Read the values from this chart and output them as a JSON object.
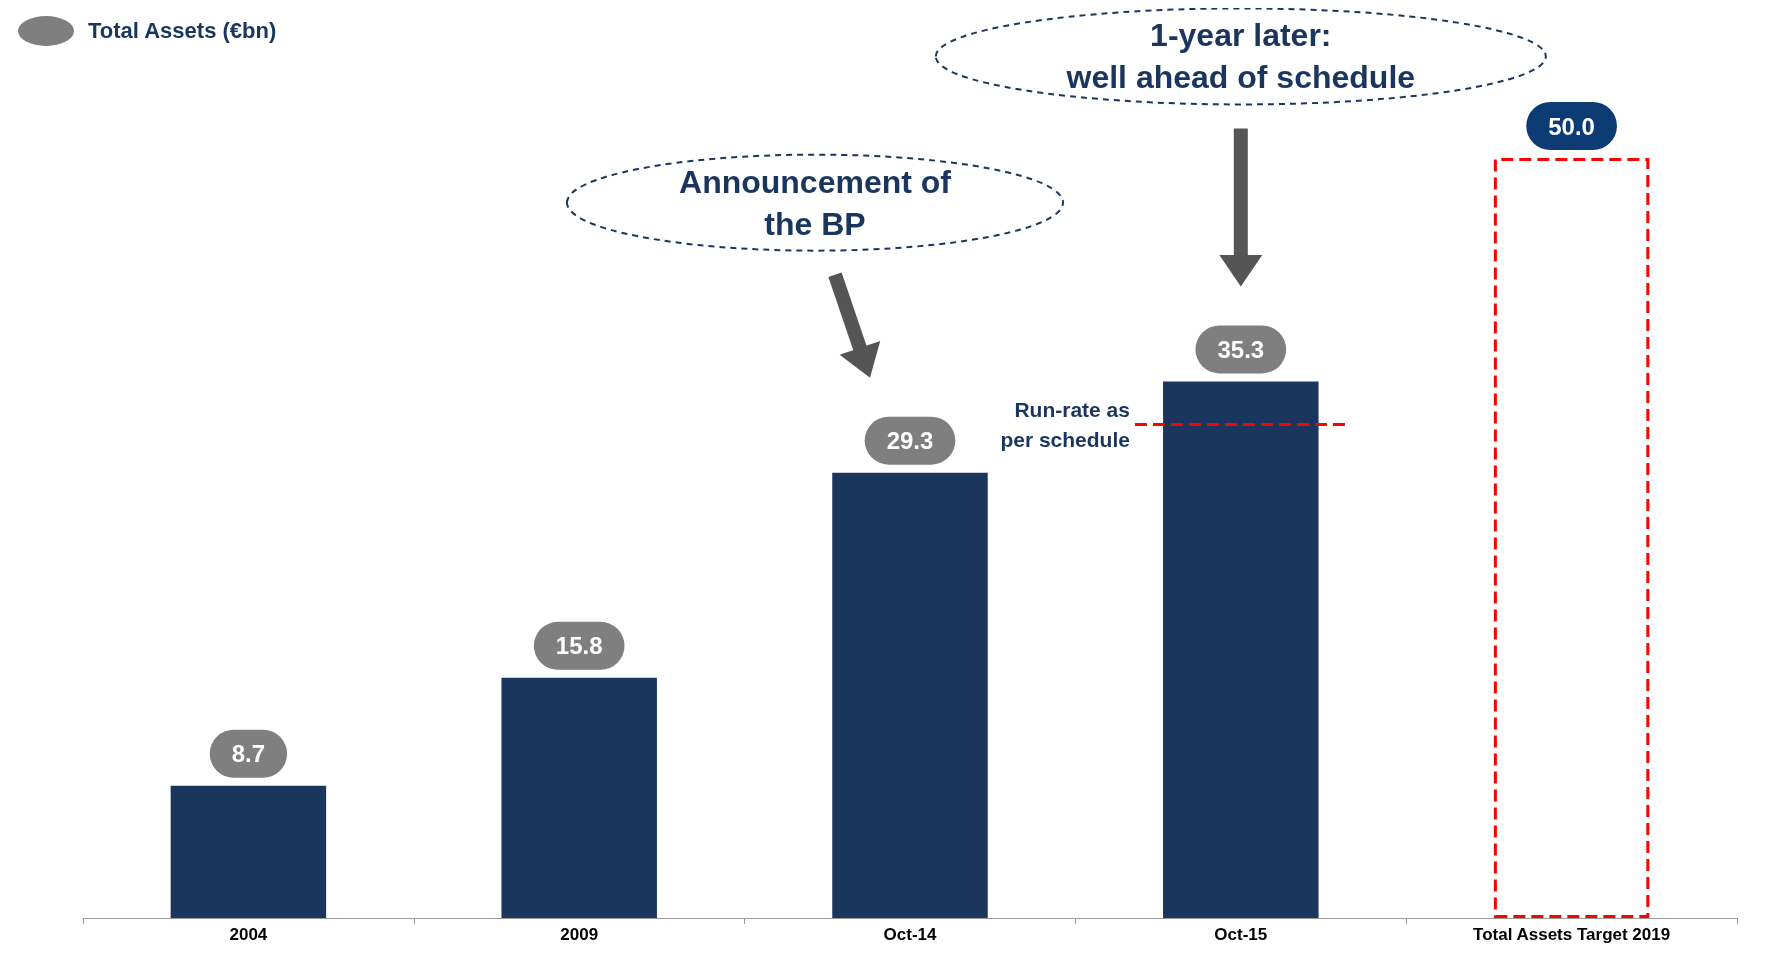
{
  "chart_data": {
    "type": "bar",
    "categories": [
      "2004",
      "2009",
      "Oct-14",
      "Oct-15",
      "Total Assets Target 2019"
    ],
    "series": [
      {
        "name": "Total Assets (€bn)",
        "color": "#1b365d",
        "values": [
          8.7,
          15.8,
          29.3,
          35.3,
          null
        ],
        "value_labels": [
          "8.7",
          "15.8",
          "29.3",
          "35.3",
          null
        ]
      },
      {
        "color": "#ff0000",
        "line_style": "dashed",
        "values": [
          null,
          null,
          null,
          null,
          50.0
        ],
        "value_labels": [
          null,
          null,
          null,
          null,
          "50.0"
        ]
      }
    ],
    "legend": "top left",
    "grid": false,
    "tick_labels": "x",
    "ref_lines": [
      {
        "axis": "y",
        "value": 32.5,
        "label": "Run-rate as\nper schedule",
        "color": "#ff0000",
        "line_style": "dashed"
      }
    ],
    "annotations": [
      "Announcement of\nthe BP",
      "1-year later:\nwell ahead of schedule"
    ]
  }
}
